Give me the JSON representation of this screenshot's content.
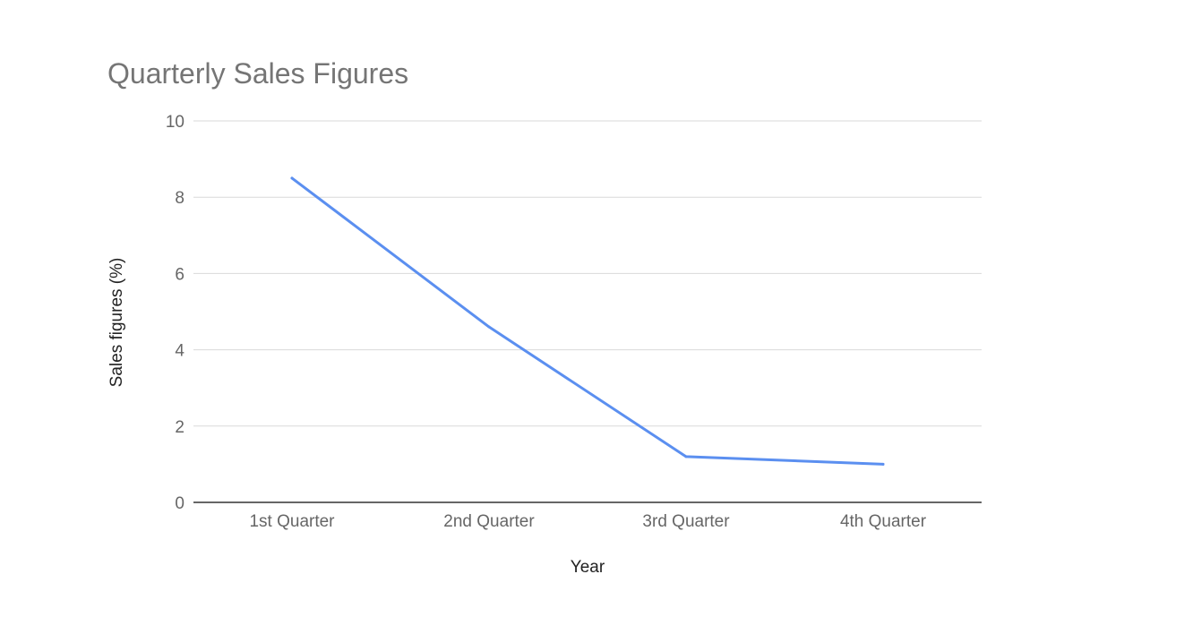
{
  "chart_data": {
    "type": "line",
    "title": "Quarterly Sales Figures",
    "xlabel": "Year",
    "ylabel": "Sales figures (%)",
    "categories": [
      "1st Quarter",
      "2nd Quarter",
      "3rd Quarter",
      "4th Quarter"
    ],
    "series": [
      {
        "values": [
          8.5,
          4.6,
          1.2,
          1.0
        ],
        "color": "#5b8ff0"
      }
    ],
    "ylim": [
      0,
      10
    ],
    "yticks": [
      "0",
      "2",
      "4",
      "6",
      "8",
      "10"
    ],
    "grid": true,
    "legend": "none"
  },
  "colors": {
    "title": "#757575",
    "tick_label": "#666666",
    "axis_label": "#222222",
    "gridline": "#d9d9d9",
    "baseline": "#333333"
  }
}
